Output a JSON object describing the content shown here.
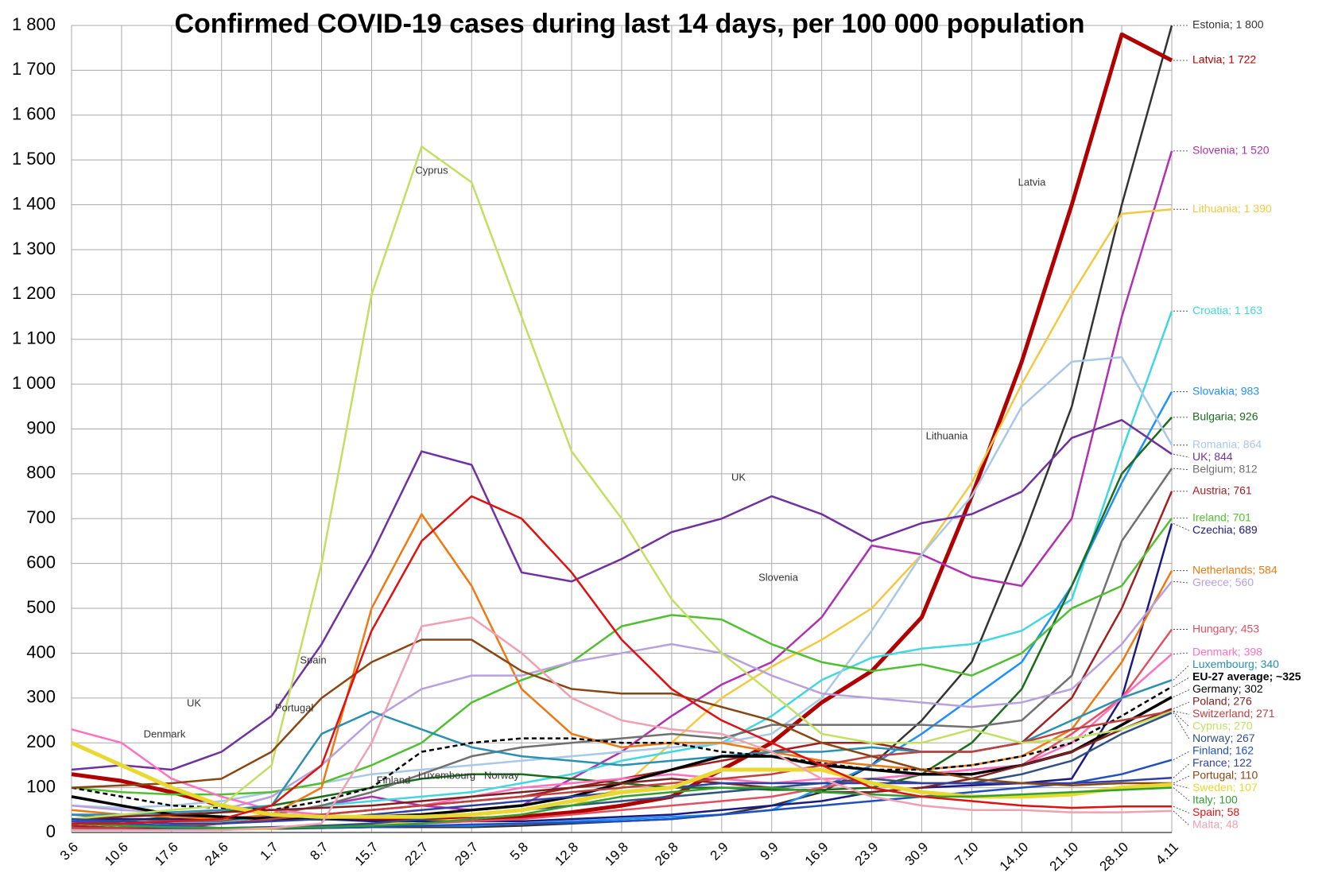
{
  "chart_data": {
    "type": "line",
    "title": "Confirmed COVID-19 cases during last 14 days, per 100 000 population",
    "categories": [
      "3.6",
      "10.6",
      "17.6",
      "24.6",
      "1.7",
      "8.7",
      "15.7",
      "22.7",
      "29.7",
      "5.8",
      "12.8",
      "19.8",
      "26.8",
      "2.9",
      "9.9",
      "16.9",
      "23.9",
      "30.9",
      "7.10",
      "14.10",
      "21.10",
      "28.10",
      "4.11"
    ],
    "ylim": [
      0,
      1800
    ],
    "yticks": [
      0,
      100,
      200,
      300,
      400,
      500,
      600,
      700,
      800,
      900,
      {
        "value": 1000,
        "label": "1 000"
      },
      {
        "value": 1100,
        "label": "1 100"
      },
      {
        "value": 1200,
        "label": "1 200"
      },
      {
        "value": 1300,
        "label": "1 300"
      },
      {
        "value": 1400,
        "label": "1 400"
      },
      {
        "value": 1500,
        "label": "1 500"
      },
      {
        "value": 1600,
        "label": "1 600"
      },
      {
        "value": 1700,
        "label": "1 700"
      },
      {
        "value": 1800,
        "label": "1 800"
      }
    ],
    "grid": true,
    "series": [
      {
        "name": "Estonia",
        "label": "Estonia; 1 800",
        "color": "#333333",
        "values": [
          20,
          15,
          10,
          8,
          8,
          10,
          12,
          12,
          12,
          15,
          20,
          25,
          30,
          40,
          60,
          90,
          150,
          250,
          380,
          650,
          950,
          1400,
          1800
        ]
      },
      {
        "name": "Latvia",
        "label": "Latvia; 1 722",
        "color": "#b00000",
        "values": [
          130,
          115,
          90,
          60,
          40,
          35,
          30,
          30,
          30,
          35,
          45,
          60,
          80,
          140,
          200,
          290,
          360,
          480,
          750,
          1050,
          1400,
          1780,
          1722
        ]
      },
      {
        "name": "Slovenia",
        "label": "Slovenia; 1 520",
        "color": "#b030b0",
        "values": [
          30,
          20,
          15,
          20,
          40,
          60,
          80,
          60,
          50,
          60,
          120,
          180,
          260,
          330,
          380,
          480,
          640,
          620,
          570,
          550,
          700,
          1150,
          1520
        ]
      },
      {
        "name": "Lithuania",
        "label": "Lithuania; 1 390",
        "color": "#f5c842",
        "values": [
          10,
          8,
          6,
          6,
          8,
          15,
          20,
          25,
          30,
          40,
          60,
          100,
          200,
          300,
          370,
          430,
          500,
          620,
          780,
          1000,
          1200,
          1380,
          1390
        ]
      },
      {
        "name": "Croatia",
        "label": "Croatia; 1 163",
        "color": "#40d8e0",
        "values": [
          5,
          5,
          10,
          20,
          40,
          60,
          70,
          80,
          90,
          110,
          130,
          160,
          180,
          200,
          260,
          340,
          390,
          410,
          420,
          450,
          520,
          850,
          1163
        ]
      },
      {
        "name": "Slovakia",
        "label": "Slovakia; 983",
        "color": "#1e90ff",
        "values": [
          10,
          8,
          8,
          10,
          12,
          15,
          15,
          15,
          15,
          20,
          25,
          30,
          35,
          40,
          50,
          100,
          150,
          220,
          300,
          380,
          550,
          780,
          983
        ]
      },
      {
        "name": "Bulgaria",
        "label": "Bulgaria; 926",
        "color": "#1a6b1a",
        "values": [
          20,
          25,
          35,
          45,
          60,
          80,
          100,
          120,
          130,
          130,
          120,
          110,
          100,
          100,
          95,
          95,
          100,
          130,
          200,
          320,
          550,
          800,
          926
        ]
      },
      {
        "name": "Romania",
        "label": "Romania; 864",
        "color": "#a8c8e8",
        "values": [
          60,
          55,
          60,
          70,
          90,
          110,
          130,
          140,
          150,
          160,
          170,
          180,
          190,
          200,
          220,
          300,
          450,
          620,
          750,
          950,
          1050,
          1060,
          864
        ]
      },
      {
        "name": "UK",
        "label": "UK; 844",
        "color": "#7030a0",
        "values": [
          140,
          150,
          140,
          180,
          260,
          420,
          620,
          850,
          820,
          580,
          560,
          610,
          670,
          700,
          750,
          710,
          650,
          690,
          710,
          760,
          880,
          920,
          844
        ]
      },
      {
        "name": "Belgium",
        "label": "Belgium; 812",
        "color": "#707070",
        "values": [
          40,
          30,
          25,
          25,
          40,
          60,
          90,
          130,
          170,
          190,
          200,
          210,
          220,
          210,
          240,
          240,
          240,
          240,
          235,
          250,
          350,
          650,
          812
        ]
      },
      {
        "name": "Austria",
        "label": "Austria; 761",
        "color": "#a02020",
        "values": [
          15,
          10,
          10,
          20,
          30,
          40,
          50,
          60,
          70,
          80,
          100,
          120,
          140,
          160,
          180,
          200,
          200,
          180,
          180,
          200,
          300,
          500,
          761
        ]
      },
      {
        "name": "Ireland",
        "label": "Ireland; 701",
        "color": "#50c030",
        "values": [
          100,
          90,
          85,
          85,
          90,
          110,
          150,
          200,
          290,
          340,
          380,
          460,
          485,
          475,
          420,
          380,
          360,
          375,
          350,
          400,
          500,
          550,
          701
        ]
      },
      {
        "name": "Czechia",
        "label": "Czechia; 689",
        "color": "#1a1a80",
        "values": [
          30,
          30,
          30,
          30,
          35,
          30,
          25,
          25,
          25,
          25,
          30,
          35,
          40,
          50,
          60,
          70,
          90,
          100,
          105,
          110,
          120,
          300,
          689
        ]
      },
      {
        "name": "Netherlands",
        "label": "Netherlands; 584",
        "color": "#f07810",
        "values": [
          50,
          40,
          35,
          30,
          40,
          100,
          500,
          710,
          550,
          320,
          220,
          190,
          200,
          200,
          180,
          160,
          150,
          140,
          150,
          170,
          230,
          380,
          584
        ]
      },
      {
        "name": "Greece",
        "label": "Greece; 560",
        "color": "#b8a0e0",
        "values": [
          60,
          50,
          45,
          50,
          80,
          150,
          250,
          320,
          350,
          350,
          380,
          400,
          420,
          400,
          350,
          310,
          300,
          290,
          280,
          290,
          320,
          420,
          560
        ]
      },
      {
        "name": "Hungary",
        "label": "Hungary; 453",
        "color": "#e05060",
        "values": [
          20,
          15,
          12,
          10,
          10,
          12,
          15,
          20,
          25,
          30,
          40,
          50,
          60,
          70,
          80,
          100,
          120,
          130,
          140,
          150,
          220,
          300,
          453
        ]
      },
      {
        "name": "Denmark",
        "label": "Denmark; 398",
        "color": "#ff70c0",
        "values": [
          230,
          200,
          120,
          80,
          50,
          40,
          50,
          60,
          80,
          100,
          110,
          120,
          130,
          120,
          110,
          120,
          120,
          130,
          140,
          150,
          200,
          300,
          398
        ]
      },
      {
        "name": "Luxembourg",
        "label": "Luxembourg; 340",
        "color": "#2890b0",
        "values": [
          40,
          40,
          45,
          50,
          60,
          220,
          270,
          230,
          190,
          170,
          160,
          150,
          160,
          170,
          180,
          180,
          190,
          180,
          180,
          200,
          250,
          300,
          340
        ]
      },
      {
        "name": "EU-27 average",
        "label": "EU-27 average; ~325",
        "color": "#000000",
        "dashed": true,
        "values": [
          100,
          80,
          60,
          55,
          50,
          70,
          100,
          180,
          200,
          210,
          210,
          200,
          200,
          180,
          170,
          155,
          140,
          140,
          150,
          170,
          200,
          260,
          325
        ]
      },
      {
        "name": "Germany",
        "label": "Germany; 302",
        "color": "#000000",
        "values": [
          80,
          60,
          40,
          35,
          30,
          30,
          35,
          40,
          50,
          60,
          80,
          110,
          140,
          170,
          170,
          150,
          140,
          130,
          130,
          150,
          180,
          240,
          302
        ]
      },
      {
        "name": "Poland",
        "label": "Poland; 276",
        "color": "#802020",
        "values": [
          30,
          35,
          40,
          45,
          50,
          55,
          60,
          70,
          80,
          90,
          100,
          110,
          120,
          110,
          100,
          90,
          90,
          100,
          120,
          150,
          180,
          230,
          276
        ]
      },
      {
        "name": "Switzerland",
        "label": "Switzerland; 271",
        "color": "#c04040",
        "values": [
          10,
          10,
          15,
          20,
          30,
          40,
          50,
          60,
          70,
          80,
          90,
          100,
          110,
          120,
          130,
          150,
          170,
          180,
          180,
          200,
          230,
          250,
          271
        ]
      },
      {
        "name": "Cyprus",
        "label": "Cyprus; 270",
        "color": "#c0e060",
        "values": [
          30,
          40,
          50,
          60,
          150,
          600,
          1200,
          1530,
          1450,
          1150,
          850,
          700,
          520,
          400,
          310,
          220,
          200,
          200,
          230,
          200,
          210,
          230,
          270
        ]
      },
      {
        "name": "Norway",
        "label": "Norway; 267",
        "color": "#305080",
        "values": [
          20,
          15,
          10,
          10,
          12,
          15,
          20,
          30,
          40,
          50,
          60,
          70,
          80,
          90,
          100,
          110,
          120,
          110,
          110,
          130,
          160,
          220,
          267
        ]
      },
      {
        "name": "Finland",
        "label": "Finland; 162",
        "color": "#2050c0",
        "values": [
          25,
          20,
          15,
          10,
          10,
          10,
          12,
          15,
          18,
          20,
          22,
          25,
          30,
          40,
          50,
          60,
          70,
          80,
          90,
          100,
          110,
          130,
          162
        ]
      },
      {
        "name": "France",
        "label": "France; 122",
        "color": "#3040a0",
        "values": [
          30,
          25,
          20,
          20,
          25,
          30,
          40,
          50,
          60,
          70,
          80,
          90,
          100,
          110,
          110,
          110,
          110,
          110,
          110,
          110,
          110,
          115,
          122
        ]
      },
      {
        "name": "Portugal",
        "label": "Portugal; 110",
        "color": "#8b4513",
        "values": [
          100,
          105,
          110,
          120,
          180,
          300,
          380,
          430,
          430,
          360,
          320,
          310,
          310,
          280,
          250,
          200,
          170,
          140,
          120,
          110,
          105,
          110,
          110
        ]
      },
      {
        "name": "Sweden",
        "label": "Sweden; 107",
        "color": "#e8d830",
        "values": [
          200,
          150,
          100,
          60,
          40,
          35,
          35,
          35,
          40,
          50,
          70,
          90,
          100,
          140,
          140,
          140,
          110,
          90,
          80,
          80,
          85,
          100,
          107
        ]
      },
      {
        "name": "Italy",
        "label": "Italy; 100",
        "color": "#30a030",
        "values": [
          20,
          15,
          12,
          10,
          10,
          12,
          15,
          20,
          30,
          40,
          60,
          80,
          90,
          100,
          100,
          90,
          85,
          80,
          80,
          85,
          90,
          95,
          100
        ]
      },
      {
        "name": "Spain",
        "label": "Spain; 58",
        "color": "#e01010",
        "values": [
          20,
          20,
          25,
          30,
          60,
          150,
          450,
          650,
          750,
          700,
          580,
          430,
          320,
          250,
          200,
          150,
          100,
          80,
          70,
          60,
          55,
          58,
          58
        ]
      },
      {
        "name": "Malta",
        "label": "Malta; 48",
        "color": "#f0a0b0",
        "values": [
          5,
          5,
          5,
          5,
          10,
          20,
          200,
          460,
          480,
          400,
          300,
          250,
          230,
          220,
          180,
          120,
          80,
          60,
          50,
          50,
          45,
          45,
          48
        ]
      }
    ],
    "annotations": [
      "Cyprus",
      "Latvia",
      "Lithuania",
      "UK",
      "Slovenia",
      "Spain",
      "Portugal",
      "UK",
      "Denmark",
      "Finland",
      "Luxembourg",
      "Norway"
    ]
  }
}
